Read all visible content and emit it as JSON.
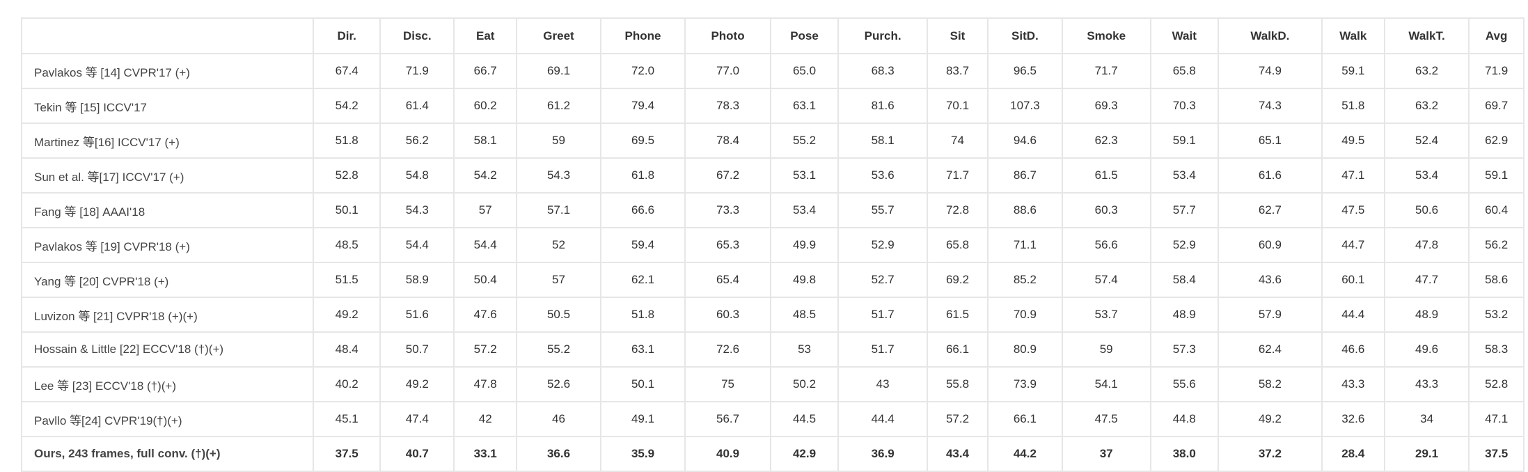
{
  "table": {
    "header": {
      "method": "",
      "columns": [
        "Dir.",
        "Disc.",
        "Eat",
        "Greet",
        "Phone",
        "Photo",
        "Pose",
        "Purch.",
        "Sit",
        "SitD.",
        "Smoke",
        "Wait",
        "WalkD.",
        "Walk",
        "WalkT.",
        "Avg"
      ]
    },
    "rows": [
      {
        "method": "Pavlakos 等 [14] CVPR'17 (+)",
        "values": [
          "67.4",
          "71.9",
          "66.7",
          "69.1",
          "72.0",
          "77.0",
          "65.0",
          "68.3",
          "83.7",
          "96.5",
          "71.7",
          "65.8",
          "74.9",
          "59.1",
          "63.2",
          "71.9"
        ]
      },
      {
        "method": "Tekin 等 [15] ICCV'17",
        "values": [
          "54.2",
          "61.4",
          "60.2",
          "61.2",
          "79.4",
          "78.3",
          "63.1",
          "81.6",
          "70.1",
          "107.3",
          "69.3",
          "70.3",
          "74.3",
          "51.8",
          "63.2",
          "69.7"
        ]
      },
      {
        "method": "Martinez 等[16] ICCV'17 (+)",
        "values": [
          "51.8",
          "56.2",
          "58.1",
          "59",
          "69.5",
          "78.4",
          "55.2",
          "58.1",
          "74",
          "94.6",
          "62.3",
          "59.1",
          "65.1",
          "49.5",
          "52.4",
          "62.9"
        ]
      },
      {
        "method": "Sun et al. 等[17] ICCV'17 (+)",
        "values": [
          "52.8",
          "54.8",
          "54.2",
          "54.3",
          "61.8",
          "67.2",
          "53.1",
          "53.6",
          "71.7",
          "86.7",
          "61.5",
          "53.4",
          "61.6",
          "47.1",
          "53.4",
          "59.1"
        ]
      },
      {
        "method": "Fang 等 [18] AAAI'18",
        "values": [
          "50.1",
          "54.3",
          "57",
          "57.1",
          "66.6",
          "73.3",
          "53.4",
          "55.7",
          "72.8",
          "88.6",
          "60.3",
          "57.7",
          "62.7",
          "47.5",
          "50.6",
          "60.4"
        ]
      },
      {
        "method": "Pavlakos 等 [19] CVPR'18 (+)",
        "values": [
          "48.5",
          "54.4",
          "54.4",
          "52",
          "59.4",
          "65.3",
          "49.9",
          "52.9",
          "65.8",
          "71.1",
          "56.6",
          "52.9",
          "60.9",
          "44.7",
          "47.8",
          "56.2"
        ]
      },
      {
        "method": "Yang 等 [20] CVPR'18 (+)",
        "values": [
          "51.5",
          "58.9",
          "50.4",
          "57",
          "62.1",
          "65.4",
          "49.8",
          "52.7",
          "69.2",
          "85.2",
          "57.4",
          "58.4",
          "43.6",
          "60.1",
          "47.7",
          "58.6"
        ]
      },
      {
        "method": "Luvizon 等 [21] CVPR'18 (+)(+)",
        "values": [
          "49.2",
          "51.6",
          "47.6",
          "50.5",
          "51.8",
          "60.3",
          "48.5",
          "51.7",
          "61.5",
          "70.9",
          "53.7",
          "48.9",
          "57.9",
          "44.4",
          "48.9",
          "53.2"
        ]
      },
      {
        "method": "Hossain & Little [22] ECCV'18 (†)(+)",
        "values": [
          "48.4",
          "50.7",
          "57.2",
          "55.2",
          "63.1",
          "72.6",
          "53",
          "51.7",
          "66.1",
          "80.9",
          "59",
          "57.3",
          "62.4",
          "46.6",
          "49.6",
          "58.3"
        ]
      },
      {
        "method": "Lee 等 [23] ECCV'18 (†)(+)",
        "values": [
          "40.2",
          "49.2",
          "47.8",
          "52.6",
          "50.1",
          "75",
          "50.2",
          "43",
          "55.8",
          "73.9",
          "54.1",
          "55.6",
          "58.2",
          "43.3",
          "43.3",
          "52.8"
        ]
      },
      {
        "method": "Pavllo 等[24] CVPR'19(†)(+)",
        "values": [
          "45.1",
          "47.4",
          "42",
          "46",
          "49.1",
          "56.7",
          "44.5",
          "44.4",
          "57.2",
          "66.1",
          "47.5",
          "44.8",
          "49.2",
          "32.6",
          "34",
          "47.1"
        ]
      },
      {
        "method": "Ours, 243 frames, full conv. (†)(+)",
        "values": [
          "37.5",
          "40.7",
          "33.1",
          "36.6",
          "35.9",
          "40.9",
          "42.9",
          "36.9",
          "43.4",
          "44.2",
          "37",
          "38.0",
          "37.2",
          "28.4",
          "29.1",
          "37.5"
        ],
        "ours": true
      }
    ]
  }
}
